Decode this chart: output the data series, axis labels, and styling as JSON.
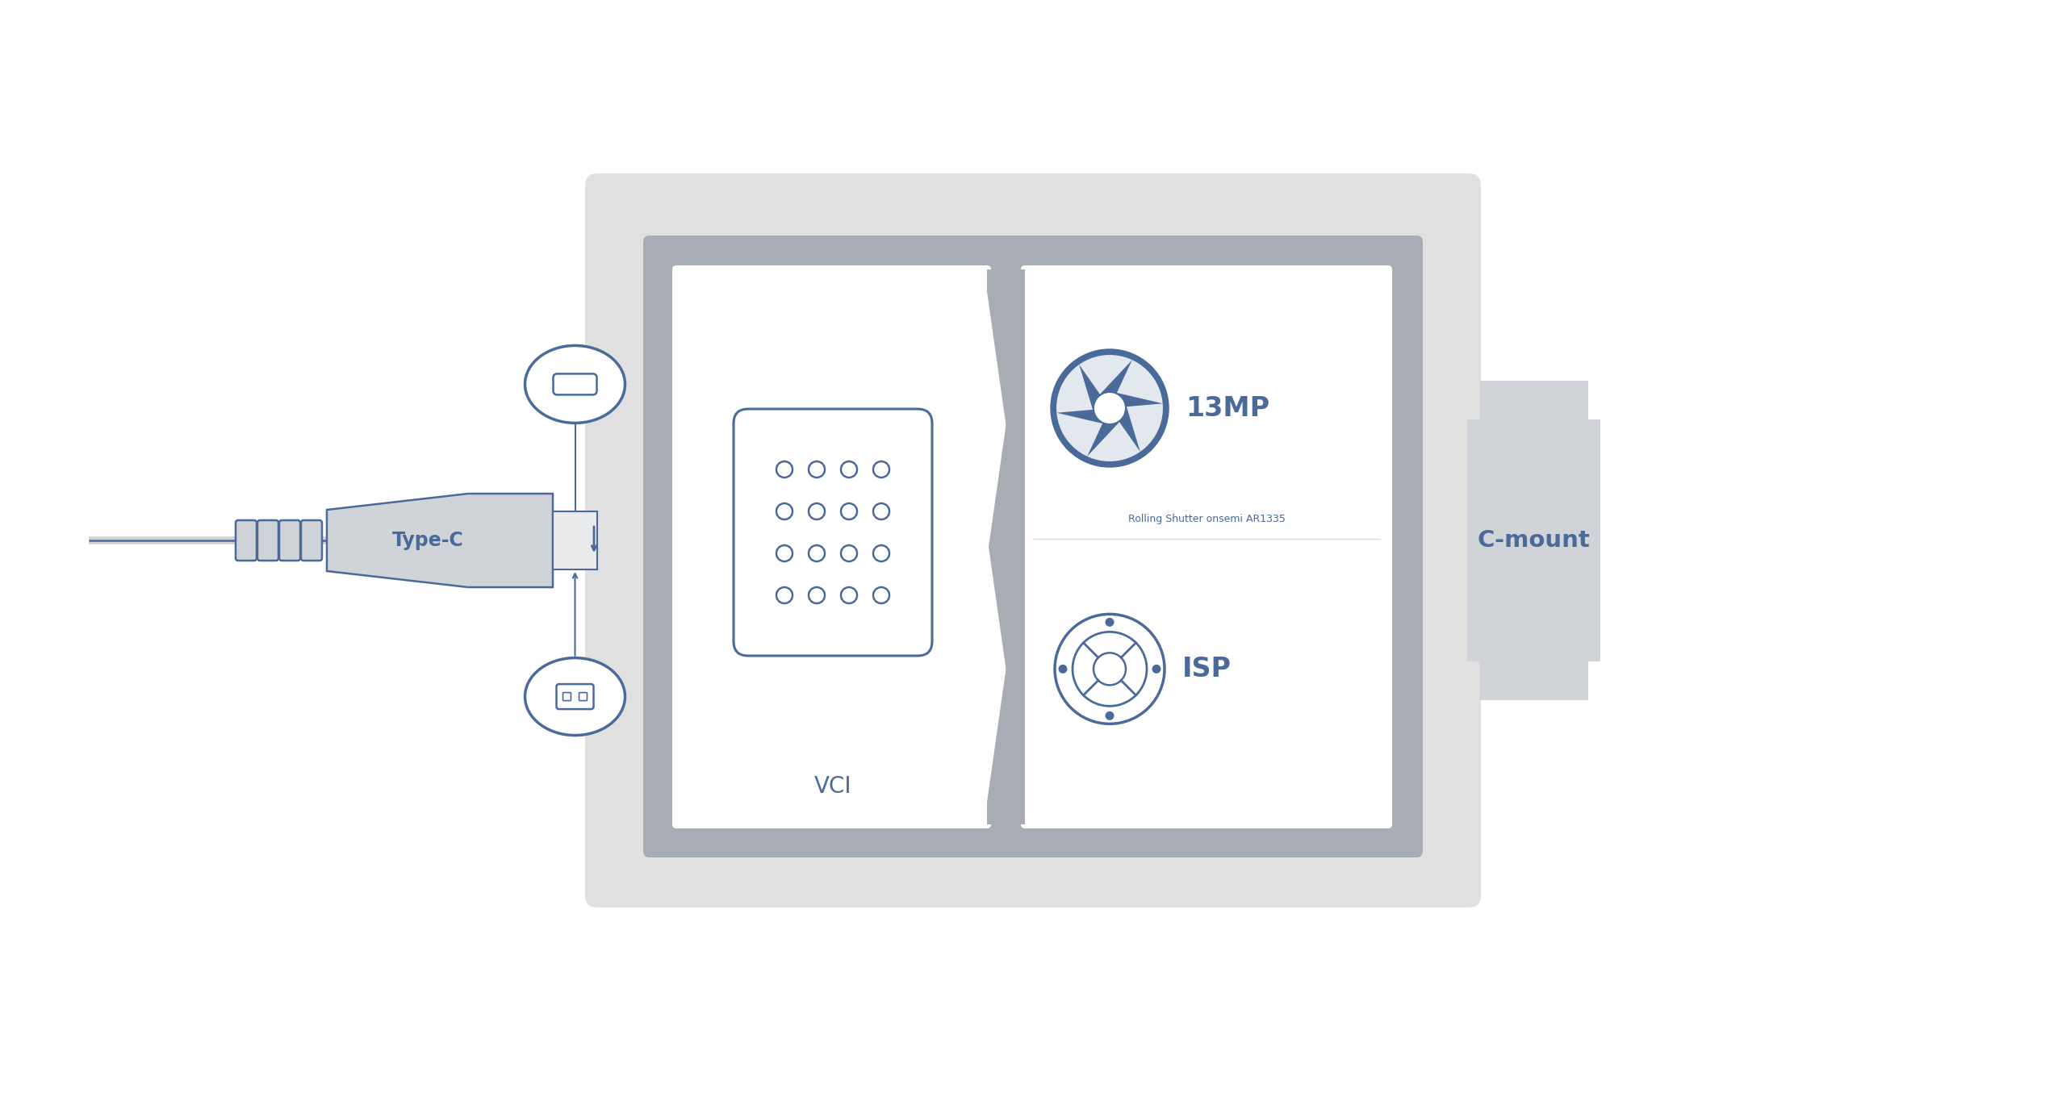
{
  "bg_color": "#ffffff",
  "blue": "#4a6b9a",
  "blue_fill": "#4a6b9a",
  "gray_outer": "#e0e0e0",
  "gray_dark": "#a8adb5",
  "gray_mid": "#c8cdd5",
  "gray_box": "#d0d4d8",
  "gray_light": "#e8eaec",
  "white": "#ffffff",
  "label_vci": "VCI",
  "label_13mp": "13MP",
  "label_rolling": "Rolling Shutter onsemi AR1335",
  "label_isp": "ISP",
  "label_cmount": "C-mount",
  "label_typec": "Type-C"
}
